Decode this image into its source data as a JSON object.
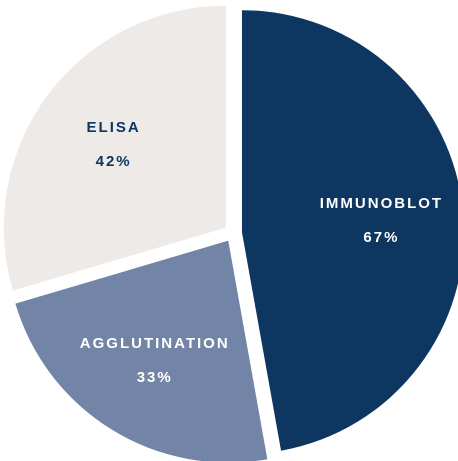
{
  "chart_data": {
    "type": "pie",
    "categories": [
      "IMMUNOBLOT",
      "AGGLUTINATION",
      "ELISA"
    ],
    "values": [
      67,
      33,
      42
    ],
    "value_labels": [
      "67%",
      "33%",
      "42%"
    ],
    "colors": [
      "#0d3661",
      "#7385a6",
      "#eeeae8"
    ],
    "label_colors": [
      "#ffffff",
      "#ffffff",
      "#0d3661"
    ]
  }
}
